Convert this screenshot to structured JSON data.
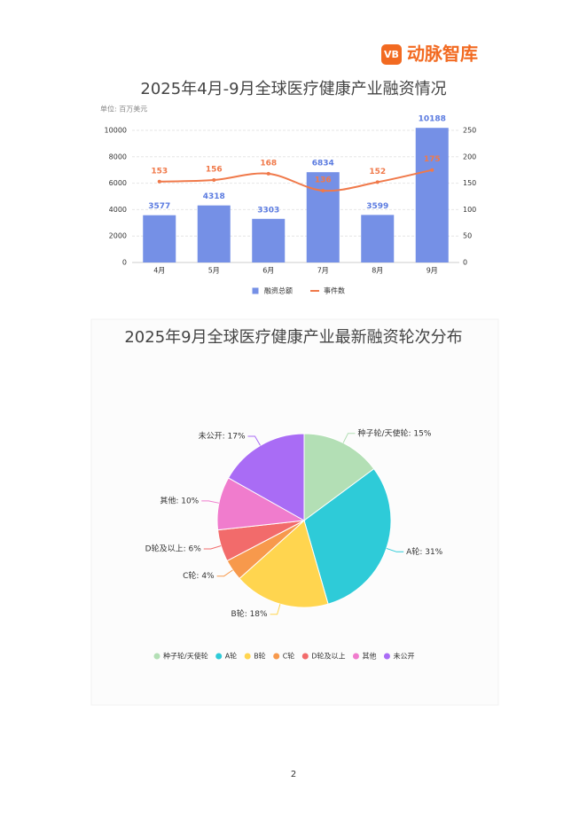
{
  "logo": {
    "icon": "VB",
    "text": "动脉智库"
  },
  "chart_data": [
    {
      "type": "bar",
      "title": "2025年4月-9月全球医疗健康产业融资情况",
      "subtitle": "单位: 百万美元",
      "categories": [
        "4月",
        "5月",
        "6月",
        "7月",
        "8月",
        "9月"
      ],
      "series": [
        {
          "name": "融资总额",
          "type": "bar",
          "color": "#7590e6",
          "values": [
            3577,
            4318,
            3303,
            6834,
            3599,
            10188
          ]
        },
        {
          "name": "事件数",
          "type": "line",
          "axis": "y2",
          "color": "#f0794a",
          "values": [
            153,
            156,
            168,
            136,
            152,
            175
          ]
        }
      ],
      "ylim": [
        0,
        10000
      ],
      "yticks": [
        0,
        2000,
        4000,
        6000,
        8000,
        10000
      ],
      "y2lim": [
        0,
        250
      ],
      "y2ticks": [
        0,
        50,
        100,
        150,
        200,
        250
      ],
      "grid": true,
      "legend": "bottom"
    },
    {
      "type": "pie",
      "title": "2025年9月全球医疗健康产业最新融资轮次分布",
      "categories": [
        "种子轮/天使轮",
        "A轮",
        "B轮",
        "C轮",
        "D轮及以上",
        "其他",
        "未公开"
      ],
      "values": [
        15,
        31,
        18,
        4,
        6,
        10,
        17
      ],
      "value_labels": [
        "种子轮/天使轮: 15%",
        "A轮: 31%",
        "B轮: 18%",
        "C轮: 4%",
        "D轮及以上: 6%",
        "其他: 10%",
        "未公开: 17%"
      ],
      "colors": [
        "#b3dfb5",
        "#2ecbd8",
        "#ffd54f",
        "#f7994c",
        "#f26b6b",
        "#f07ccd",
        "#a96cf5"
      ],
      "legend": "bottom"
    }
  ],
  "page_number": "2"
}
